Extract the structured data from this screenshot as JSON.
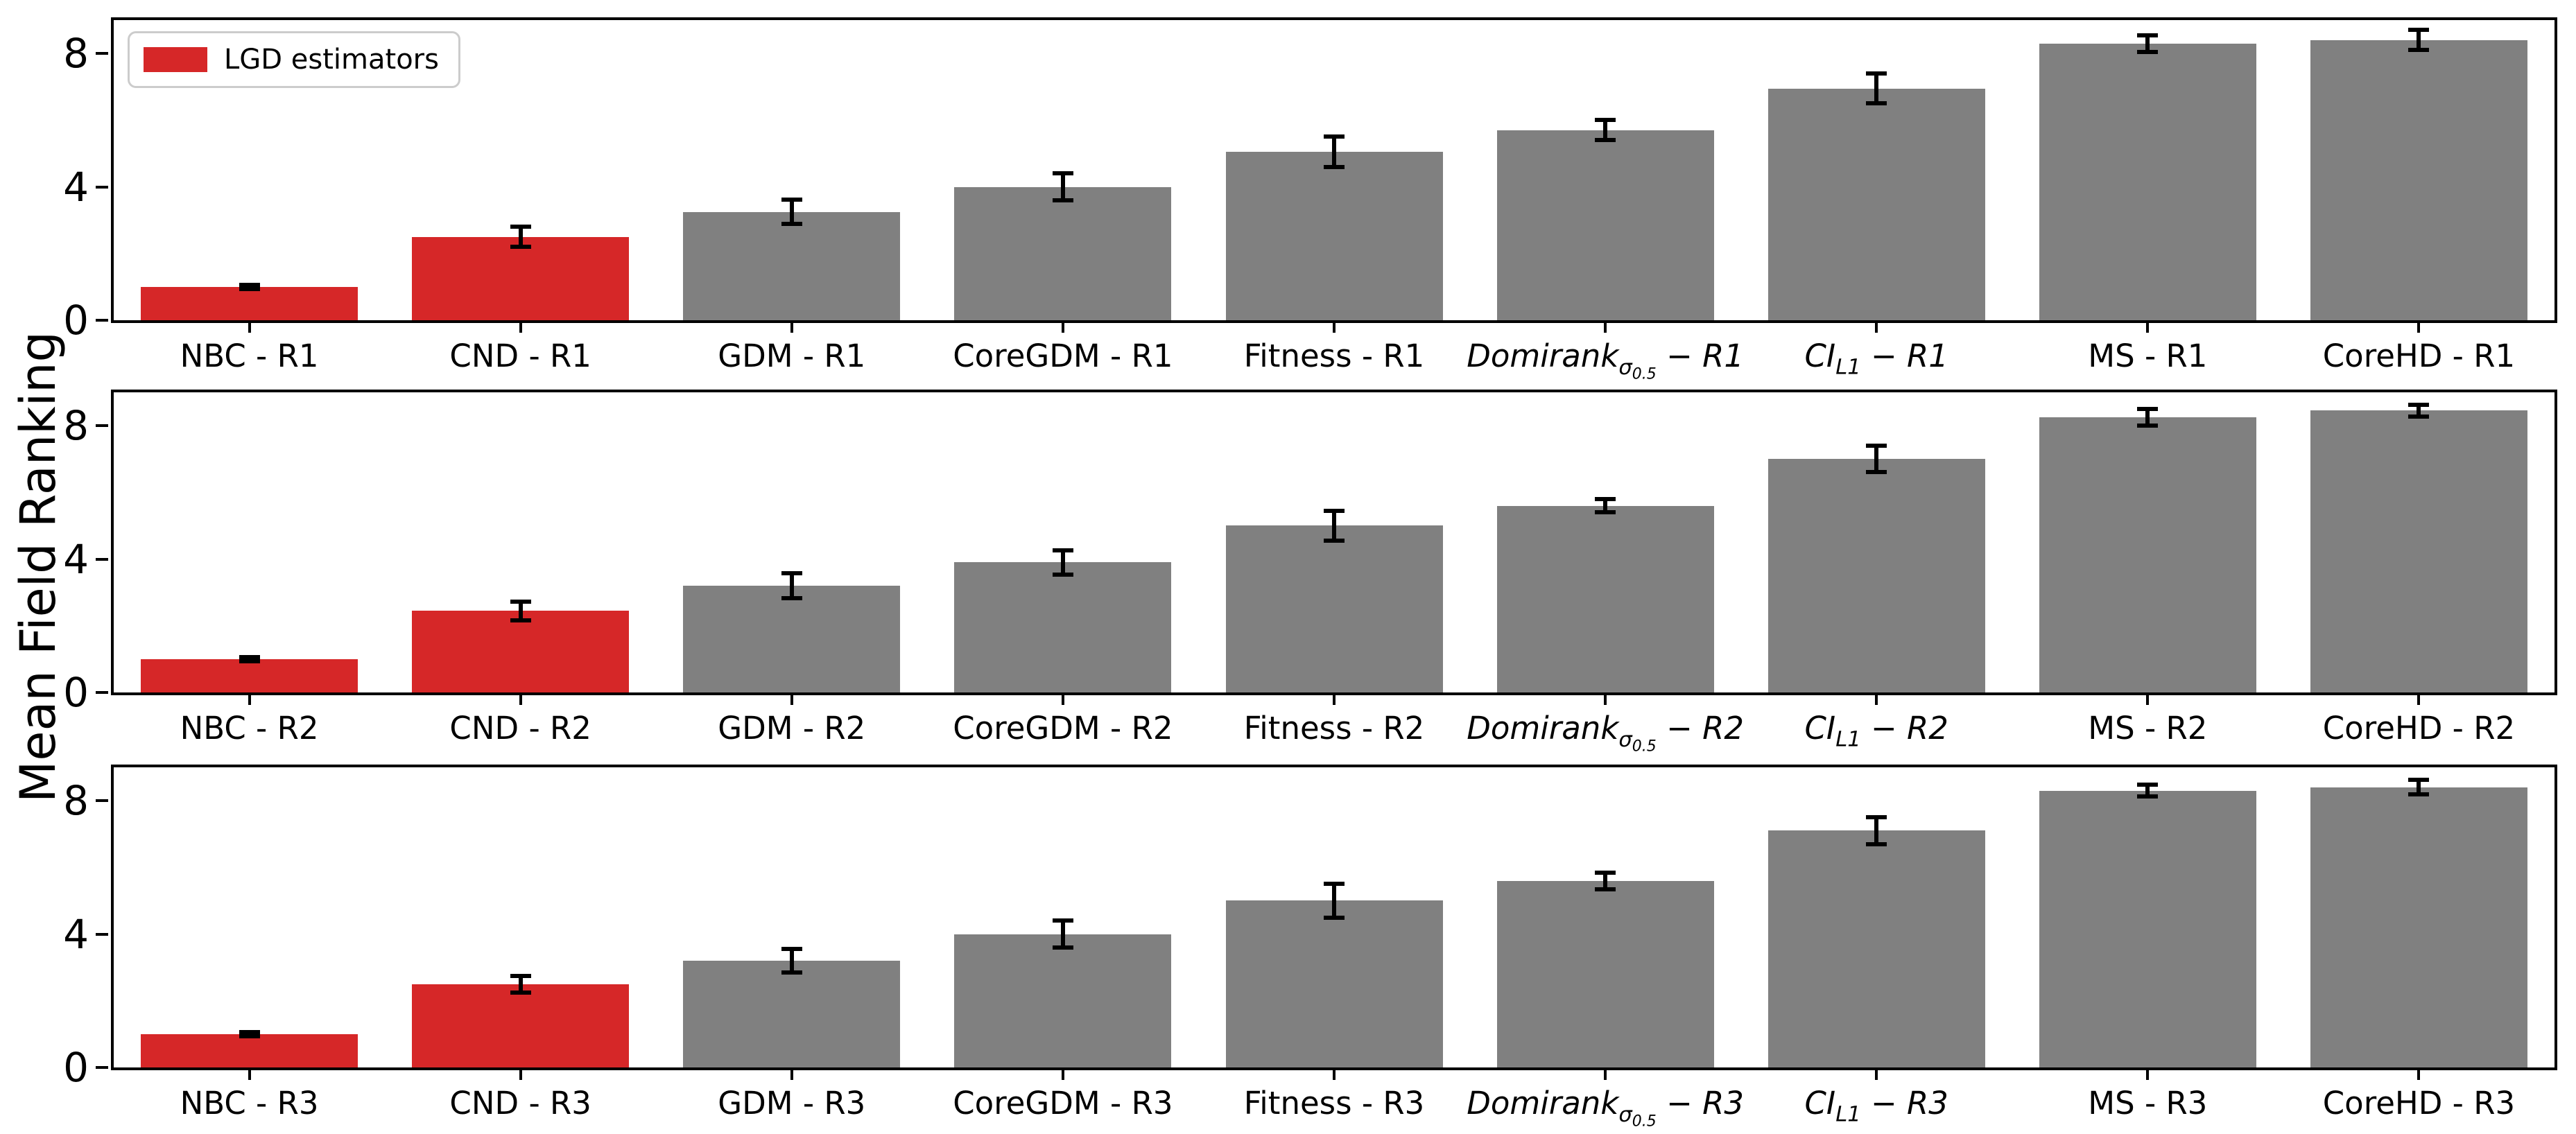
{
  "figure": {
    "background": "#ffffff"
  },
  "legend": {
    "label": "LGD estimators",
    "swatch_color": "#d62728"
  },
  "chart_data": {
    "type": "bar",
    "title": "",
    "xlabel": "",
    "ylabel": "Mean Field Ranking",
    "ylim": [
      0,
      9
    ],
    "yticks": [
      "0",
      "4",
      "8"
    ],
    "grid": false,
    "legend_position": "upper-left-first-subplot",
    "legend_entries": [
      {
        "label": "LGD estimators",
        "color": "#d62728"
      }
    ],
    "colors": {
      "lgd": "#d62728",
      "default": "#808080",
      "errorbar": "#000000"
    },
    "separators": {
      "plain": " - ",
      "math": " − "
    },
    "categories": [
      {
        "name": "NBC",
        "math": false,
        "lgd": true
      },
      {
        "name": "CND",
        "math": false,
        "lgd": true
      },
      {
        "name": "GDM",
        "math": false,
        "lgd": false
      },
      {
        "name": "CoreGDM",
        "math": false,
        "lgd": false
      },
      {
        "name": "Fitness",
        "math": false,
        "lgd": false
      },
      {
        "name": "Domirank",
        "math": true,
        "sub": "σ",
        "subsub": "0.5",
        "lgd": false
      },
      {
        "name": "CI",
        "math": true,
        "sub": "L1",
        "subsub": "",
        "lgd": false
      },
      {
        "name": "MS",
        "math": false,
        "lgd": false
      },
      {
        "name": "CoreHD",
        "math": false,
        "lgd": false
      }
    ],
    "subplots": [
      {
        "suffix": "R1",
        "values": [
          1.0,
          2.5,
          3.25,
          4.0,
          5.05,
          5.7,
          6.95,
          8.3,
          8.4
        ],
        "errors": [
          0.07,
          0.3,
          0.37,
          0.4,
          0.45,
          0.3,
          0.45,
          0.25,
          0.3
        ]
      },
      {
        "suffix": "R2",
        "values": [
          1.0,
          2.45,
          3.2,
          3.9,
          5.0,
          5.6,
          7.0,
          8.25,
          8.45
        ],
        "errors": [
          0.07,
          0.28,
          0.37,
          0.36,
          0.45,
          0.2,
          0.4,
          0.25,
          0.17
        ]
      },
      {
        "suffix": "R3",
        "values": [
          1.0,
          2.5,
          3.2,
          4.0,
          5.0,
          5.6,
          7.1,
          8.3,
          8.4
        ],
        "errors": [
          0.07,
          0.25,
          0.35,
          0.4,
          0.5,
          0.25,
          0.4,
          0.17,
          0.22
        ]
      }
    ]
  }
}
